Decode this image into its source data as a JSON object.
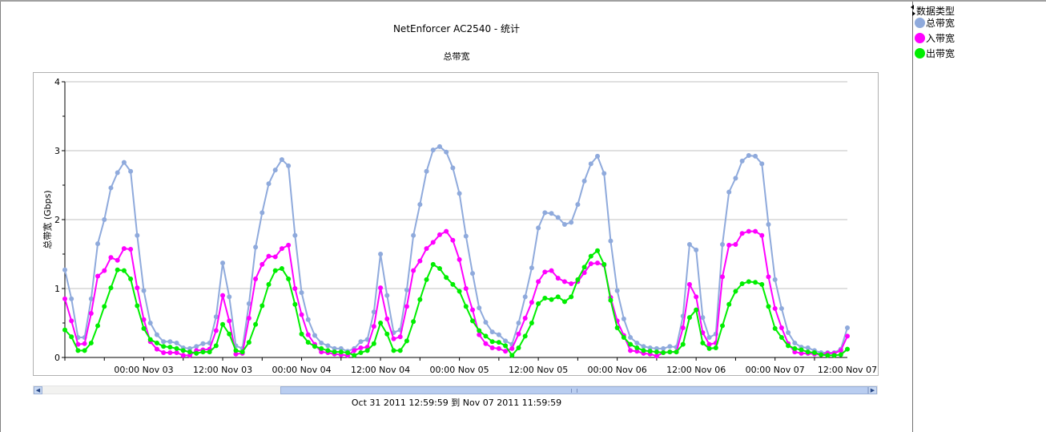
{
  "chart_data": {
    "type": "line",
    "title": "NetEnforcer AC2540 - 统计",
    "subtitle": "总带宽",
    "ylabel": "总带宽 (Gbps)",
    "xlabel": "",
    "ylim": [
      0,
      4
    ],
    "yticks": [
      "0",
      "1",
      "2",
      "3",
      "4"
    ],
    "x_unit": "hours since 12:00 Nov 02 (hourly samples)",
    "xlim": [
      0,
      119
    ],
    "xtick_labels": [
      {
        "hour": 12,
        "label": "00:00 Nov 03"
      },
      {
        "hour": 24,
        "label": "12:00 Nov 03"
      },
      {
        "hour": 36,
        "label": "00:00 Nov 04"
      },
      {
        "hour": 48,
        "label": "12:00 Nov 04"
      },
      {
        "hour": 60,
        "label": "00:00 Nov 05"
      },
      {
        "hour": 72,
        "label": "12:00 Nov 05"
      },
      {
        "hour": 84,
        "label": "00:00 Nov 06"
      },
      {
        "hour": 96,
        "label": "12:00 Nov 06"
      },
      {
        "hour": 108,
        "label": "00:00 Nov 07"
      },
      {
        "hour": 119,
        "label": "12:00 Nov 07"
      }
    ],
    "grid": true,
    "legend_position": "right",
    "series": [
      {
        "name": "总带宽",
        "color": "#8faadc",
        "values": [
          1.27,
          0.85,
          0.29,
          0.29,
          0.85,
          1.65,
          2.0,
          2.46,
          2.68,
          2.83,
          2.7,
          1.77,
          0.97,
          0.5,
          0.33,
          0.23,
          0.23,
          0.21,
          0.14,
          0.13,
          0.16,
          0.2,
          0.21,
          0.59,
          1.37,
          0.88,
          0.17,
          0.13,
          0.78,
          1.6,
          2.1,
          2.52,
          2.72,
          2.87,
          2.78,
          1.77,
          0.94,
          0.55,
          0.32,
          0.21,
          0.17,
          0.13,
          0.13,
          0.09,
          0.13,
          0.23,
          0.26,
          0.66,
          1.5,
          0.9,
          0.36,
          0.4,
          0.98,
          1.77,
          2.22,
          2.7,
          3.01,
          3.06,
          2.98,
          2.75,
          2.38,
          1.76,
          1.22,
          0.72,
          0.51,
          0.37,
          0.33,
          0.24,
          0.19,
          0.5,
          0.88,
          1.3,
          1.88,
          2.1,
          2.09,
          2.03,
          1.93,
          1.96,
          2.22,
          2.56,
          2.81,
          2.92,
          2.67,
          1.69,
          0.97,
          0.56,
          0.29,
          0.21,
          0.16,
          0.14,
          0.13,
          0.13,
          0.16,
          0.15,
          0.6,
          1.64,
          1.56,
          0.58,
          0.29,
          0.34,
          1.64,
          2.4,
          2.6,
          2.85,
          2.93,
          2.92,
          2.81,
          1.93,
          1.13,
          0.71,
          0.36,
          0.21,
          0.15,
          0.14,
          0.1,
          0.07,
          0.07,
          0.07,
          0.12,
          0.43
        ]
      },
      {
        "name": "入带宽",
        "color": "#ff00ff",
        "values": [
          0.85,
          0.53,
          0.19,
          0.2,
          0.64,
          1.18,
          1.26,
          1.45,
          1.41,
          1.58,
          1.57,
          1.01,
          0.55,
          0.23,
          0.12,
          0.07,
          0.07,
          0.07,
          0.03,
          0.03,
          0.1,
          0.11,
          0.12,
          0.39,
          0.9,
          0.53,
          0.05,
          0.06,
          0.57,
          1.14,
          1.35,
          1.47,
          1.46,
          1.58,
          1.63,
          1.0,
          0.62,
          0.33,
          0.19,
          0.08,
          0.07,
          0.05,
          0.04,
          0.03,
          0.1,
          0.14,
          0.15,
          0.45,
          1.01,
          0.56,
          0.27,
          0.3,
          0.74,
          1.26,
          1.4,
          1.58,
          1.67,
          1.78,
          1.83,
          1.7,
          1.42,
          1.0,
          0.69,
          0.33,
          0.2,
          0.14,
          0.13,
          0.09,
          0.13,
          0.34,
          0.57,
          0.8,
          1.1,
          1.24,
          1.26,
          1.15,
          1.1,
          1.07,
          1.1,
          1.23,
          1.36,
          1.37,
          1.34,
          0.87,
          0.53,
          0.32,
          0.1,
          0.09,
          0.06,
          0.05,
          0.02,
          0.07,
          0.08,
          0.08,
          0.43,
          1.06,
          0.88,
          0.36,
          0.19,
          0.21,
          1.17,
          1.63,
          1.64,
          1.8,
          1.83,
          1.83,
          1.77,
          1.17,
          0.71,
          0.43,
          0.2,
          0.08,
          0.06,
          0.06,
          0.05,
          0.04,
          0.06,
          0.06,
          0.1,
          0.31
        ]
      },
      {
        "name": "出带宽",
        "color": "#00ee00",
        "values": [
          0.4,
          0.3,
          0.1,
          0.1,
          0.21,
          0.46,
          0.74,
          1.01,
          1.27,
          1.26,
          1.14,
          0.75,
          0.42,
          0.26,
          0.21,
          0.16,
          0.15,
          0.13,
          0.1,
          0.08,
          0.06,
          0.08,
          0.08,
          0.17,
          0.48,
          0.34,
          0.1,
          0.08,
          0.22,
          0.48,
          0.75,
          1.06,
          1.26,
          1.29,
          1.14,
          0.77,
          0.34,
          0.22,
          0.16,
          0.13,
          0.1,
          0.08,
          0.08,
          0.07,
          0.03,
          0.07,
          0.1,
          0.2,
          0.5,
          0.34,
          0.1,
          0.1,
          0.24,
          0.52,
          0.84,
          1.13,
          1.35,
          1.29,
          1.16,
          1.06,
          0.96,
          0.74,
          0.53,
          0.39,
          0.31,
          0.23,
          0.22,
          0.17,
          0.03,
          0.14,
          0.31,
          0.5,
          0.78,
          0.86,
          0.84,
          0.88,
          0.81,
          0.88,
          1.13,
          1.31,
          1.47,
          1.55,
          1.35,
          0.83,
          0.43,
          0.29,
          0.19,
          0.14,
          0.1,
          0.09,
          0.08,
          0.07,
          0.08,
          0.08,
          0.19,
          0.58,
          0.69,
          0.21,
          0.13,
          0.14,
          0.46,
          0.77,
          0.96,
          1.07,
          1.1,
          1.09,
          1.06,
          0.74,
          0.42,
          0.29,
          0.17,
          0.13,
          0.11,
          0.08,
          0.07,
          0.04,
          0.03,
          0.03,
          0.04,
          0.12
        ]
      }
    ]
  },
  "legend": {
    "title": "数据类型",
    "items": [
      {
        "label": "总带宽",
        "color": "#8faadc"
      },
      {
        "label": "入带宽",
        "color": "#ff00ff"
      },
      {
        "label": "出带宽",
        "color": "#00ee00"
      }
    ]
  },
  "range_text": "Oct 31 2011  12:59:59  到  Nov 07 2011  11:59:59",
  "scrollbar": {
    "left_arrow": "◀",
    "right_arrow": "▶"
  }
}
